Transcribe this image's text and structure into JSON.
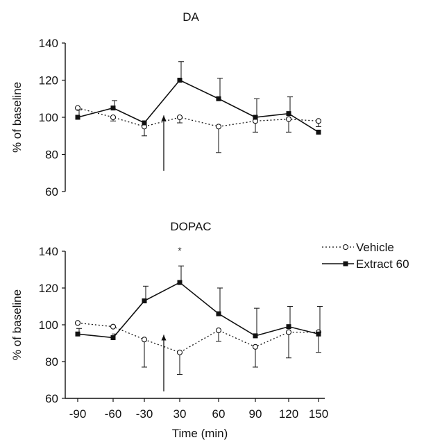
{
  "chart_data": [
    {
      "type": "line",
      "title": "DA",
      "xlabel": "",
      "ylabel": "% of baseline",
      "ylim": [
        60,
        140
      ],
      "yticks": [
        60,
        80,
        100,
        120,
        140
      ],
      "x": [
        -90,
        -60,
        -30,
        30,
        60,
        90,
        120,
        150
      ],
      "show_xticks": false,
      "arrow_at_x": 0,
      "series": [
        {
          "name": "Vehicle",
          "style": "dotted",
          "marker": "open-circle",
          "values": [
            105,
            100,
            95,
            100,
            95,
            98,
            99,
            98
          ],
          "error": [
            0,
            2,
            5,
            3,
            14,
            6,
            7,
            3
          ]
        },
        {
          "name": "Extract 60",
          "style": "solid",
          "marker": "filled-square",
          "values": [
            100,
            105,
            97,
            120,
            110,
            100,
            102,
            92
          ],
          "error": [
            4,
            4,
            0,
            10,
            11,
            10,
            9,
            0
          ]
        }
      ],
      "annotations": []
    },
    {
      "type": "line",
      "title": "DOPAC",
      "xlabel": "Time (min)",
      "ylabel": "% of baseline",
      "ylim": [
        60,
        140
      ],
      "yticks": [
        60,
        80,
        100,
        120,
        140
      ],
      "x": [
        -90,
        -60,
        -30,
        30,
        60,
        90,
        120,
        150
      ],
      "show_xticks": true,
      "xtick_labels": [
        "-90",
        "-60",
        "-30",
        "30",
        "60",
        "90",
        "120",
        "150"
      ],
      "arrow_at_x": 0,
      "legend": "top-right",
      "series": [
        {
          "name": "Vehicle",
          "style": "dotted",
          "marker": "open-circle",
          "values": [
            101,
            99,
            92,
            85,
            97,
            88,
            96,
            96
          ],
          "error": [
            0,
            0,
            15,
            12,
            6,
            11,
            14,
            11
          ]
        },
        {
          "name": "Extract 60",
          "style": "solid",
          "marker": "filled-square",
          "values": [
            95,
            93,
            113,
            123,
            106,
            94,
            99,
            95
          ],
          "error": [
            3,
            2,
            8,
            9,
            14,
            15,
            11,
            15
          ]
        }
      ],
      "annotations": [
        {
          "x": 30,
          "text": "*"
        }
      ]
    }
  ]
}
